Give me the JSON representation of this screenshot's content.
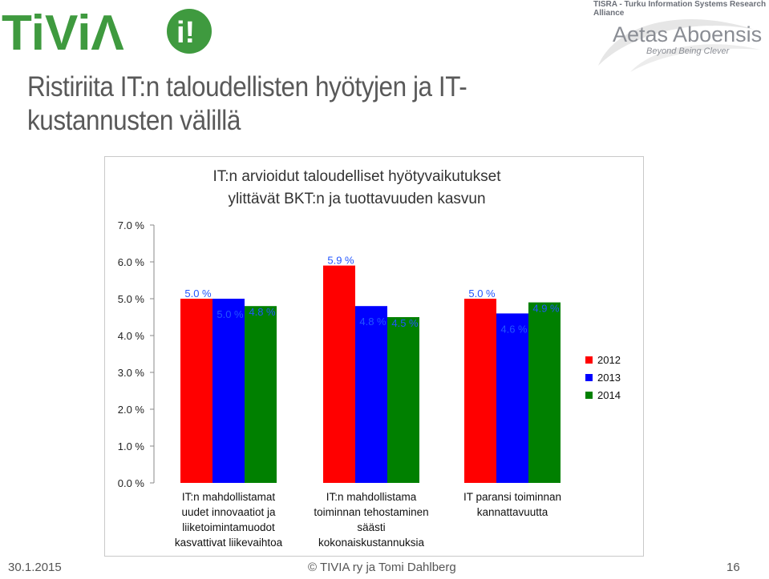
{
  "header": {
    "logo_text": "TiViΛ",
    "org_line": "TISRA - Turku Information Systems Research Alliance",
    "brand": "Aetas Aboensis",
    "brand_tagline": "Beyond Being Clever"
  },
  "slide": {
    "title_line1": "Ristiriita IT:n taloudellisten hyötyjen ja IT-",
    "title_line2": "kustannusten välillä"
  },
  "colors": {
    "s2012": "#ff0000",
    "s2013": "#0000ff",
    "s2014": "#008000",
    "logo_green": "#3f9a3f"
  },
  "chart_data": {
    "type": "bar",
    "title_lines": [
      "IT:n arvioidut taloudelliset hyötyvaikutukset",
      "ylittävät BKT:n ja tuottavuuden kasvun"
    ],
    "categories": [
      [
        "IT:n mahdollistamat",
        "uudet innovaatiot ja",
        "liiketoimintamuodot",
        "kasvattivat liikevaihtoa"
      ],
      [
        "IT:n mahdollistama",
        "toiminnan tehostaminen",
        "säästi",
        "kokonaiskustannuksia"
      ],
      [
        "IT paransi toiminnan",
        "kannattavuutta"
      ]
    ],
    "series": [
      {
        "name": "2012",
        "values": [
          5.0,
          5.9,
          5.0
        ],
        "labels": [
          "5.0 %",
          "5.9 %",
          "5.0 %"
        ]
      },
      {
        "name": "2013",
        "values": [
          5.0,
          4.8,
          4.6
        ],
        "labels": [
          "5.0 %",
          "4.8 %",
          "4.6 %"
        ]
      },
      {
        "name": "2014",
        "values": [
          4.8,
          4.5,
          4.9
        ],
        "labels": [
          "4.8 %",
          "4.5 %",
          "4.9 %"
        ]
      }
    ],
    "ylim": [
      0,
      7
    ],
    "yticks": [
      "0.0 %",
      "1.0 %",
      "2.0 %",
      "3.0 %",
      "4.0 %",
      "5.0 %",
      "6.0 %",
      "7.0 %"
    ],
    "legend_position": "right"
  },
  "footer": {
    "date": "30.1.2015",
    "center": "©   TIVIA ry ja Tomi Dahlberg",
    "page": "16"
  }
}
